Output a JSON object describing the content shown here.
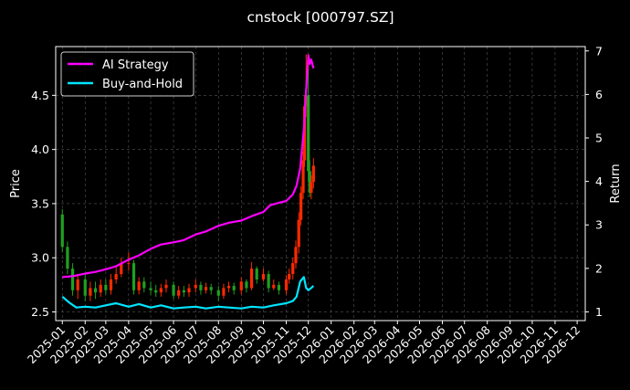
{
  "chart_data": {
    "type": "line",
    "title": "cnstock [000797.SZ]",
    "xlabel": "",
    "ylabel_left": "Price",
    "ylabel_right": "Return",
    "x_ticks": [
      "2025-01",
      "2025-02",
      "2025-03",
      "2025-04",
      "2025-05",
      "2025-06",
      "2025-07",
      "2025-08",
      "2025-09",
      "2025-10",
      "2025-11",
      "2025-12",
      "2026-01",
      "2026-02",
      "2026-03",
      "2026-04",
      "2026-05",
      "2026-06",
      "2026-07",
      "2026-08",
      "2026-09",
      "2026-10",
      "2026-11",
      "2026-12"
    ],
    "left_y_ticks": [
      "2.5",
      "3.0",
      "3.5",
      "4.0",
      "4.5"
    ],
    "right_y_ticks": [
      "1",
      "2",
      "3",
      "4",
      "5",
      "6",
      "7"
    ],
    "ylim_left": [
      2.42,
      4.95
    ],
    "ylim_right": [
      0.8,
      7.1
    ],
    "xlim": [
      "2024-12-23",
      "2026-12-12"
    ],
    "grid": true,
    "legend_position": "top-left",
    "colors": {
      "background": "#000000",
      "ai_strategy": "#ff00ff",
      "buy_and_hold": "#00e5ff",
      "candle_up": "#ff2a00",
      "candle_down": "#1fa11f",
      "grid": "#555555",
      "axes": "#ffffff"
    },
    "series": [
      {
        "name": "AI Strategy",
        "axis": "right",
        "x": [
          "2025-01-01",
          "2025-01-15",
          "2025-02-01",
          "2025-02-15",
          "2025-03-01",
          "2025-03-15",
          "2025-04-01",
          "2025-04-15",
          "2025-05-01",
          "2025-05-15",
          "2025-06-01",
          "2025-06-15",
          "2025-07-01",
          "2025-07-15",
          "2025-08-01",
          "2025-08-15",
          "2025-09-01",
          "2025-09-15",
          "2025-10-01",
          "2025-10-10",
          "2025-10-20",
          "2025-11-01",
          "2025-11-10",
          "2025-11-15",
          "2025-11-20",
          "2025-11-25",
          "2025-11-28",
          "2025-12-01",
          "2025-12-03",
          "2025-12-05",
          "2025-12-08"
        ],
        "values": [
          1.8,
          1.82,
          1.88,
          1.92,
          1.98,
          2.05,
          2.2,
          2.3,
          2.45,
          2.55,
          2.6,
          2.65,
          2.78,
          2.85,
          2.98,
          3.05,
          3.1,
          3.2,
          3.3,
          3.45,
          3.5,
          3.55,
          3.7,
          3.9,
          4.3,
          5.2,
          6.1,
          6.9,
          6.7,
          6.8,
          6.6
        ]
      },
      {
        "name": "Buy-and-Hold",
        "axis": "right",
        "x": [
          "2025-01-01",
          "2025-01-10",
          "2025-01-20",
          "2025-02-01",
          "2025-02-15",
          "2025-03-01",
          "2025-03-15",
          "2025-04-01",
          "2025-04-15",
          "2025-05-01",
          "2025-05-15",
          "2025-06-01",
          "2025-06-15",
          "2025-07-01",
          "2025-07-15",
          "2025-08-01",
          "2025-08-15",
          "2025-09-01",
          "2025-09-15",
          "2025-10-01",
          "2025-10-15",
          "2025-11-01",
          "2025-11-10",
          "2025-11-15",
          "2025-11-20",
          "2025-11-25",
          "2025-11-28",
          "2025-12-01",
          "2025-12-05",
          "2025-12-08"
        ],
        "values": [
          1.35,
          1.22,
          1.1,
          1.12,
          1.1,
          1.15,
          1.2,
          1.12,
          1.18,
          1.1,
          1.15,
          1.08,
          1.1,
          1.12,
          1.08,
          1.12,
          1.1,
          1.08,
          1.12,
          1.1,
          1.15,
          1.2,
          1.25,
          1.35,
          1.7,
          1.8,
          1.55,
          1.5,
          1.55,
          1.6
        ]
      },
      {
        "name": "Price",
        "axis": "left",
        "type": "candlestick",
        "x": [
          "2025-01-01",
          "2025-01-08",
          "2025-01-15",
          "2025-01-22",
          "2025-02-01",
          "2025-02-08",
          "2025-02-15",
          "2025-02-22",
          "2025-03-01",
          "2025-03-08",
          "2025-03-15",
          "2025-03-22",
          "2025-04-01",
          "2025-04-08",
          "2025-04-15",
          "2025-04-22",
          "2025-05-01",
          "2025-05-08",
          "2025-05-15",
          "2025-05-22",
          "2025-06-01",
          "2025-06-08",
          "2025-06-15",
          "2025-06-22",
          "2025-07-01",
          "2025-07-08",
          "2025-07-15",
          "2025-07-22",
          "2025-08-01",
          "2025-08-08",
          "2025-08-15",
          "2025-08-22",
          "2025-09-01",
          "2025-09-08",
          "2025-09-15",
          "2025-09-22",
          "2025-10-01",
          "2025-10-08",
          "2025-10-15",
          "2025-10-22",
          "2025-11-01",
          "2025-11-05",
          "2025-11-10",
          "2025-11-14",
          "2025-11-18",
          "2025-11-21",
          "2025-11-24",
          "2025-11-26",
          "2025-11-28",
          "2025-12-01",
          "2025-12-03",
          "2025-12-05",
          "2025-12-08"
        ],
        "open": [
          3.4,
          3.1,
          2.9,
          2.7,
          2.8,
          2.65,
          2.72,
          2.68,
          2.75,
          2.7,
          2.8,
          2.85,
          2.95,
          2.95,
          2.7,
          2.78,
          2.72,
          2.7,
          2.68,
          2.72,
          2.75,
          2.65,
          2.7,
          2.68,
          2.72,
          2.75,
          2.7,
          2.73,
          2.7,
          2.65,
          2.72,
          2.74,
          2.7,
          2.78,
          2.72,
          2.9,
          2.8,
          2.85,
          2.72,
          2.75,
          2.7,
          2.8,
          2.85,
          2.95,
          3.1,
          3.35,
          3.6,
          3.9,
          4.4,
          4.5,
          3.8,
          3.6,
          3.7
        ],
        "close": [
          3.1,
          2.9,
          2.7,
          2.8,
          2.65,
          2.72,
          2.68,
          2.75,
          2.7,
          2.8,
          2.85,
          2.95,
          2.95,
          2.7,
          2.78,
          2.72,
          2.7,
          2.68,
          2.72,
          2.75,
          2.65,
          2.7,
          2.68,
          2.72,
          2.75,
          2.7,
          2.73,
          2.7,
          2.65,
          2.72,
          2.74,
          2.7,
          2.78,
          2.72,
          2.9,
          2.8,
          2.85,
          2.72,
          2.75,
          2.7,
          2.8,
          2.85,
          2.95,
          3.1,
          3.35,
          3.6,
          3.9,
          4.4,
          4.5,
          3.8,
          3.6,
          3.7,
          3.85
        ],
        "high": [
          3.45,
          3.15,
          2.95,
          2.85,
          2.85,
          2.78,
          2.78,
          2.8,
          2.8,
          2.85,
          2.92,
          3.0,
          3.05,
          2.98,
          2.82,
          2.82,
          2.78,
          2.75,
          2.76,
          2.8,
          2.78,
          2.74,
          2.74,
          2.76,
          2.8,
          2.78,
          2.77,
          2.76,
          2.74,
          2.76,
          2.78,
          2.77,
          2.82,
          2.8,
          2.96,
          2.92,
          2.9,
          2.88,
          2.8,
          2.78,
          2.84,
          2.9,
          3.0,
          3.16,
          3.42,
          3.66,
          3.98,
          4.5,
          4.88,
          4.8,
          3.9,
          3.76,
          3.92
        ],
        "low": [
          3.05,
          2.85,
          2.65,
          2.62,
          2.6,
          2.6,
          2.62,
          2.64,
          2.66,
          2.66,
          2.76,
          2.82,
          2.88,
          2.66,
          2.66,
          2.68,
          2.66,
          2.64,
          2.64,
          2.68,
          2.62,
          2.62,
          2.64,
          2.64,
          2.68,
          2.66,
          2.67,
          2.66,
          2.6,
          2.62,
          2.68,
          2.66,
          2.66,
          2.68,
          2.7,
          2.76,
          2.78,
          2.68,
          2.7,
          2.66,
          2.66,
          2.76,
          2.8,
          2.9,
          3.04,
          3.3,
          3.54,
          3.84,
          4.3,
          3.7,
          3.56,
          3.54,
          3.64
        ]
      }
    ]
  }
}
